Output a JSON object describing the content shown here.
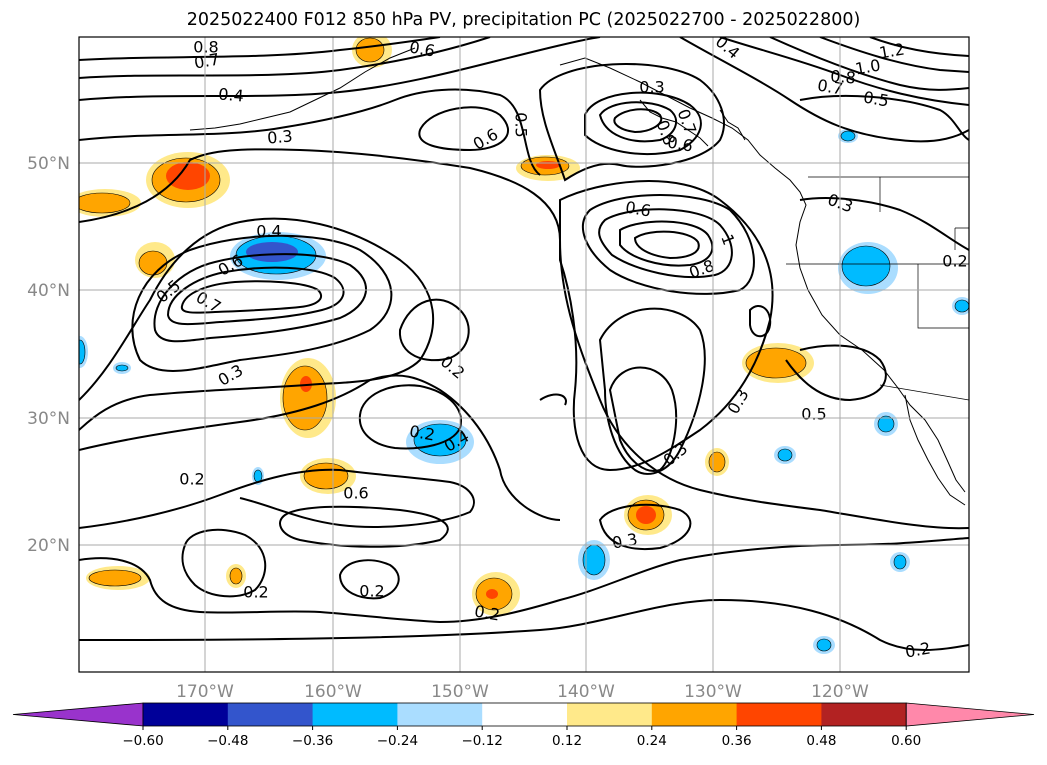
{
  "title": "2025022400 F012 850 hPa PV, precipitation PC (2025022700 - 2025022800)",
  "lon_labels": [
    "170°W",
    "160°W",
    "150°W",
    "140°W",
    "130°W",
    "120°W"
  ],
  "lat_labels": [
    "50°N",
    "40°N",
    "30°N",
    "20°N"
  ],
  "contour_labels": [
    "0.8",
    "0.7",
    "0.4",
    "0.6",
    "1.2",
    "1.0",
    "0.8",
    "0.7",
    "0.5",
    "0.4",
    "0.3",
    "0.5",
    "0.6",
    "0.3",
    "0.8",
    "0.6",
    "0.7",
    "0.3",
    "0.2",
    "0.4",
    "0.6",
    "0.5",
    "0.7",
    "0.6",
    "0.8",
    "1",
    "0.3",
    "0.2",
    "0.4",
    "0.3",
    "0.5",
    "0.3",
    "0.6",
    "0.2",
    "0.3",
    "0.2",
    "0.2",
    "0.2",
    "0.2",
    "0.2"
  ],
  "colorbar": {
    "colors": [
      "#9933cc",
      "#000099",
      "#3355cc",
      "#00bbff",
      "#aaddff",
      "#ffffff",
      "#ffe98a",
      "#ffa500",
      "#ff4500",
      "#b22222",
      "#ff88aa"
    ],
    "tick_labels": [
      "−0.60",
      "−0.48",
      "−0.36",
      "−0.24",
      "−0.12",
      "0.12",
      "0.24",
      "0.36",
      "0.48",
      "0.60"
    ]
  },
  "shading_colors": {
    "neg_light": "#aaddff",
    "neg_mid": "#00bbff",
    "neg_strong": "#3355cc",
    "pos_light": "#ffe98a",
    "pos_mid": "#ffa500",
    "pos_strong": "#ff4500"
  }
}
